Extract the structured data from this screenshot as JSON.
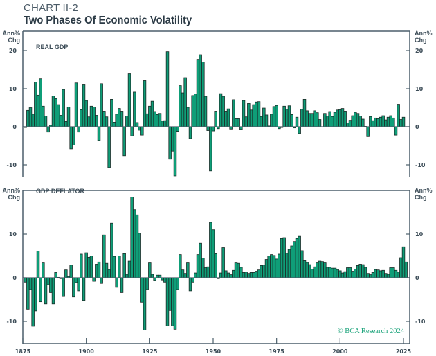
{
  "header": {
    "chart_number": "CHART II-2",
    "title": "Two Phases Of Economic Volatility"
  },
  "credit": "© BCA Research 2024",
  "colors": {
    "bar_fill": "#0f9e78",
    "bar_stroke": "#1a2a26",
    "axis": "#4b5f6b"
  },
  "chart_data": [
    {
      "type": "bar",
      "panel_label": "REAL GDP",
      "ylabel": "Ann% Chg",
      "ylabel_lines": [
        "Ann%",
        "Chg"
      ],
      "ylim": [
        -13,
        25
      ],
      "yticks": [
        20,
        10,
        0,
        -10
      ],
      "ytick_labels": [
        "20",
        "10",
        "0",
        "-10"
      ],
      "xlim": [
        1875,
        2025
      ],
      "x_start": 1876,
      "values": [
        -0.2,
        4.3,
        5.0,
        3.3,
        11.7,
        8.3,
        12.6,
        5.4,
        2.8,
        -1.4,
        0.4,
        8.1,
        7.4,
        5.8,
        3.0,
        9.8,
        1.4,
        5.2,
        -5.8,
        -4.8,
        11.5,
        -1.4,
        4.5,
        11.0,
        6.9,
        2.6,
        5.4,
        5.2,
        3.0,
        -3.6,
        11.3,
        4.1,
        2.6,
        -10.7,
        7.2,
        1.2,
        3.3,
        4.8,
        4.1,
        -7.6,
        2.8,
        13.9,
        -2.4,
        9.1,
        1.1,
        -0.9,
        -2.2,
        12.1,
        3.4,
        5.4,
        6.7,
        4.0,
        3.2,
        3.5,
        1.5,
        1.6,
        19.7,
        -8.5,
        -6.4,
        -12.9,
        -1.2,
        10.8,
        8.9,
        12.9,
        5.1,
        -3.1,
        8.2,
        8.6,
        17.7,
        18.9,
        17.0,
        8.0,
        -1.0,
        -11.6,
        -1.1,
        4.1,
        -0.5,
        8.7,
        8.0,
        4.1,
        4.7,
        -0.6,
        7.1,
        2.1,
        2.1,
        -0.7,
        6.9,
        2.6,
        6.1,
        4.4,
        5.8,
        6.5,
        6.6,
        2.7,
        4.9,
        3.1,
        0.2,
        3.3,
        5.3,
        5.6,
        -0.5,
        -0.2,
        5.4,
        4.6,
        5.5,
        3.2,
        -0.3,
        2.5,
        -1.8,
        4.6,
        7.2,
        4.2,
        3.5,
        3.5,
        4.2,
        3.7,
        1.9,
        -0.1,
        3.5,
        2.8,
        4.0,
        2.7,
        3.8,
        4.4,
        4.5,
        4.8,
        4.1,
        1.0,
        1.7,
        2.9,
        3.8,
        3.5,
        2.8,
        2.0,
        0.1,
        -2.6,
        2.7,
        1.6,
        2.3,
        2.1,
        2.5,
        2.9,
        1.8,
        2.5,
        2.9,
        2.3,
        -2.2,
        5.9,
        1.9,
        2.5
      ]
    },
    {
      "type": "bar",
      "panel_label": "GDP DEFLATOR",
      "ylabel": "Ann% Chg",
      "ylabel_lines": [
        "Ann%",
        "Chg"
      ],
      "ylim": [
        -15,
        20
      ],
      "yticks": [
        10,
        0,
        -10
      ],
      "ytick_labels": [
        "10",
        "0",
        "-10"
      ],
      "xlim": [
        1875,
        2025
      ],
      "x_start": 1876,
      "xticks": [
        1875,
        1900,
        1925,
        1950,
        1975,
        2000,
        2025
      ],
      "xtick_labels": [
        "1875",
        "1900",
        "1925",
        "1950",
        "1975",
        "2000",
        "2025"
      ],
      "values": [
        -1.0,
        -7.2,
        -2.7,
        -11.1,
        -7.6,
        6.1,
        -5.5,
        3.4,
        -6.0,
        -1.6,
        -3.4,
        -6.0,
        1.2,
        0.1,
        -0.2,
        -4.3,
        1.8,
        0.3,
        2.9,
        -4.4,
        -1.1,
        -3.0,
        5.4,
        -5.2,
        5.7,
        4.7,
        5.0,
        -0.8,
        3.1,
        3.6,
        -1.3,
        9.8,
        3.3,
        1.9,
        12.5,
        4.9,
        -2.2,
        5.0,
        -3.4,
        5.5,
        0.8,
        3.8,
        18.5,
        15.6,
        14.4,
        10.2,
        -5.6,
        -12.0,
        -2.7,
        3.4,
        0.8,
        -0.6,
        0.6,
        0.6,
        -0.5,
        -1.0,
        -11.0,
        -7.5,
        -11.0,
        -11.8,
        -2.7,
        5.3,
        1.8,
        1.0,
        3.4,
        -3.0,
        -1.0,
        1.1,
        5.3,
        7.9,
        4.5,
        2.3,
        2.5,
        12.7,
        11.0,
        5.5,
        -0.2,
        1.1,
        6.9,
        1.6,
        1.1,
        0.7,
        1.7,
        3.4,
        3.3,
        2.4,
        1.2,
        1.3,
        1.0,
        1.2,
        1.2,
        1.5,
        1.8,
        2.8,
        2.9,
        4.2,
        5.0,
        5.3,
        5.1,
        4.3,
        5.4,
        9.0,
        9.2,
        5.6,
        6.5,
        7.3,
        8.3,
        9.0,
        9.5,
        6.2,
        3.9,
        3.5,
        3.0,
        2.0,
        2.5,
        3.4,
        3.8,
        3.7,
        3.4,
        2.4,
        2.4,
        2.2,
        2.2,
        1.9,
        1.6,
        1.1,
        1.4,
        2.3,
        2.3,
        1.5,
        2.0,
        2.8,
        3.1,
        3.0,
        2.4,
        1.0,
        0.7,
        1.2,
        1.9,
        1.8,
        1.6,
        1.7,
        1.0,
        0.8,
        2.3,
        2.3,
        1.7,
        1.3,
        4.6,
        7.1,
        3.6
      ]
    }
  ]
}
